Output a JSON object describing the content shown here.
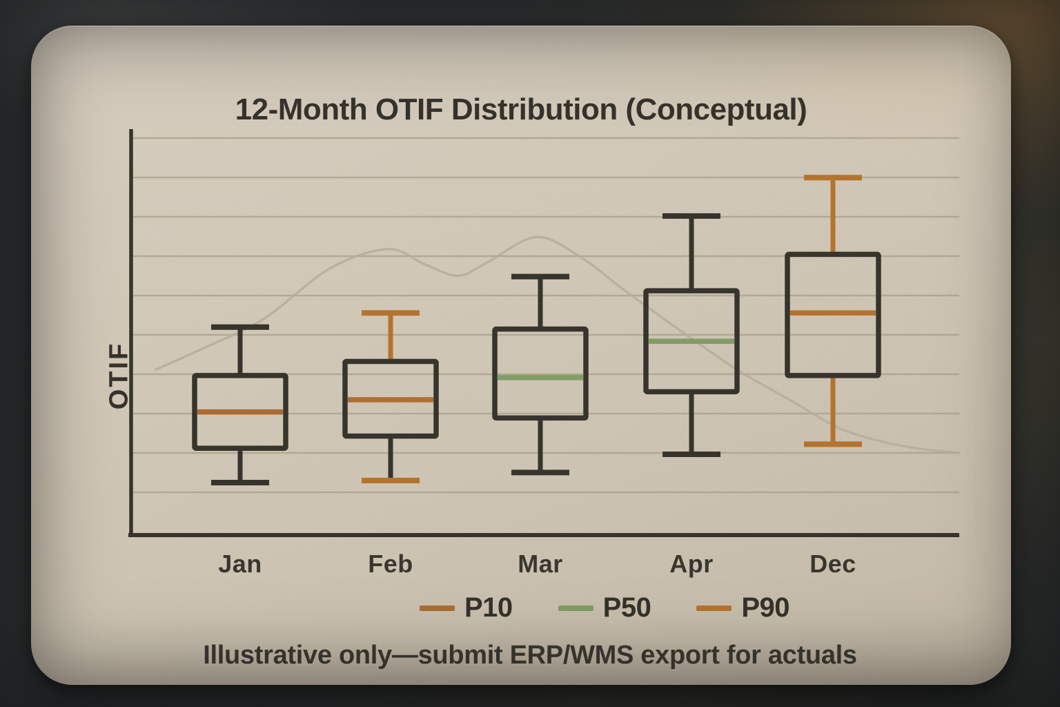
{
  "chart_data": {
    "type": "boxplot",
    "title": "12-Month OTIF Distribution (Conceptual)",
    "ylabel": "OTIF",
    "xlabel": "",
    "categories": [
      "Jan",
      "Feb",
      "Mar",
      "Apr",
      "Dec"
    ],
    "axis_note": "y-axis shows no numeric ticks; box values are relative estimates on a 0-100 scale of plot height",
    "grid": "horizontal-only",
    "legend_position": "bottom",
    "series": [
      {
        "label": "Jan",
        "low": 13,
        "q1": 21.5,
        "median": 30.5,
        "q3": 39.5,
        "high": 51.5,
        "median_color": "#a8672f",
        "whisker_top_color": "#35322b",
        "cap_top_color": "#35322b",
        "whisker_bottom_color": "#35322b",
        "cap_bottom_color": "#35322b"
      },
      {
        "label": "Feb",
        "low": 13.5,
        "q1": 24.5,
        "median": 33.5,
        "q3": 43,
        "high": 55,
        "median_color": "#ad6c30",
        "whisker_top_color": "#b4702c",
        "cap_top_color": "#b4702c",
        "whisker_bottom_color": "#35322b",
        "cap_bottom_color": "#b4702c"
      },
      {
        "label": "Mar",
        "low": 15.5,
        "q1": 29,
        "median": 39,
        "q3": 51,
        "high": 64,
        "median_color": "#7f9a62",
        "whisker_top_color": "#35322b",
        "cap_top_color": "#35322b",
        "whisker_bottom_color": "#35322b",
        "cap_bottom_color": "#35322b"
      },
      {
        "label": "Apr",
        "low": 20,
        "q1": 35.5,
        "median": 48,
        "q3": 60.5,
        "high": 79,
        "median_color": "#7f9a62",
        "whisker_top_color": "#35322b",
        "cap_top_color": "#35322b",
        "whisker_bottom_color": "#35322b",
        "cap_bottom_color": "#35322b"
      },
      {
        "label": "Dec",
        "low": 22.5,
        "q1": 39.5,
        "median": 55,
        "q3": 69.5,
        "high": 88.5,
        "median_color": "#b4702c",
        "whisker_top_color": "#b4702c",
        "cap_top_color": "#b4702c",
        "whisker_bottom_color": "#b4702c",
        "cap_bottom_color": "#b4702c"
      }
    ],
    "legend": [
      {
        "label": "P10",
        "color": "#a76b33"
      },
      {
        "label": "P50",
        "color": "#7f9a62"
      },
      {
        "label": "P90",
        "color": "#b4702c"
      }
    ],
    "background_curve": {
      "color": "#b6ab96",
      "points": [
        [
          0.03,
          41
        ],
        [
          0.09,
          46.5
        ],
        [
          0.16,
          53.5
        ],
        [
          0.24,
          66
        ],
        [
          0.31,
          70.8
        ],
        [
          0.355,
          67
        ],
        [
          0.395,
          64.2
        ],
        [
          0.43,
          67.5
        ],
        [
          0.49,
          73.8
        ],
        [
          0.545,
          68.5
        ],
        [
          0.59,
          61.5
        ],
        [
          0.64,
          54
        ],
        [
          0.685,
          47.5
        ],
        [
          0.735,
          40.5
        ],
        [
          0.795,
          33.5
        ],
        [
          0.855,
          26.5
        ],
        [
          0.91,
          23
        ],
        [
          0.955,
          21.3
        ],
        [
          1.0,
          20.3
        ]
      ]
    },
    "colors": {
      "ink": "#35322b",
      "grid": "#a59a84",
      "box_border": "#35322b"
    }
  },
  "annotations": {
    "caption": "Illustrative only—submit ERP/WMS export for actuals"
  }
}
